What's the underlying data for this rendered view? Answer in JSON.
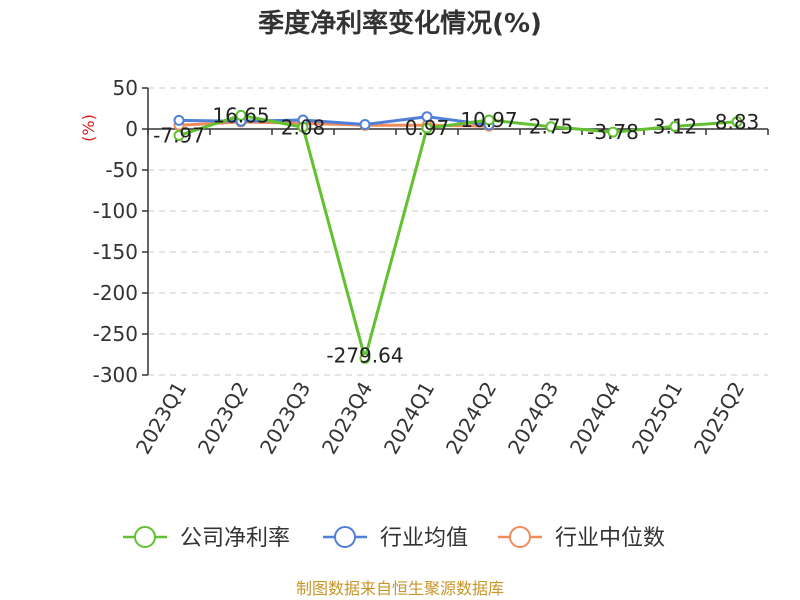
{
  "chart_data": {
    "type": "line",
    "title": "季度净利率变化情况(%)",
    "ylabel": "(%)",
    "ylim": [
      -300,
      50
    ],
    "yticks": [
      "50",
      "0",
      "-50",
      "-100",
      "-150",
      "-200",
      "-250",
      "-300"
    ],
    "categories": [
      "2023Q1",
      "2023Q2",
      "2023Q3",
      "2023Q4",
      "2024Q1",
      "2024Q2",
      "2024Q3",
      "2024Q4",
      "2025Q1",
      "2025Q2"
    ],
    "grid": true,
    "legend_position": "bottom",
    "series": [
      {
        "name": "公司净利率",
        "color": "#62c130",
        "values": [
          -7.97,
          16.65,
          2.08,
          -279.64,
          0.97,
          10.97,
          2.75,
          -3.78,
          3.12,
          8.83
        ],
        "labels": [
          "-7.97",
          "16.65",
          "2.08",
          "-279.64",
          "0.97",
          "10.97",
          "2.75",
          "-3.78",
          "3.12",
          "8.83"
        ]
      },
      {
        "name": "行业均值",
        "color": "#4f7fd9",
        "values": [
          10.5,
          9.5,
          11.0,
          5.5,
          15.0,
          5.0,
          null,
          null,
          null,
          null
        ]
      },
      {
        "name": "行业中位数",
        "color": "#f28c5c",
        "values": [
          4.5,
          8.5,
          7.0,
          4.5,
          4.5,
          3.5,
          null,
          null,
          null,
          null
        ]
      }
    ]
  },
  "source": "制图数据来自恒生聚源数据库"
}
